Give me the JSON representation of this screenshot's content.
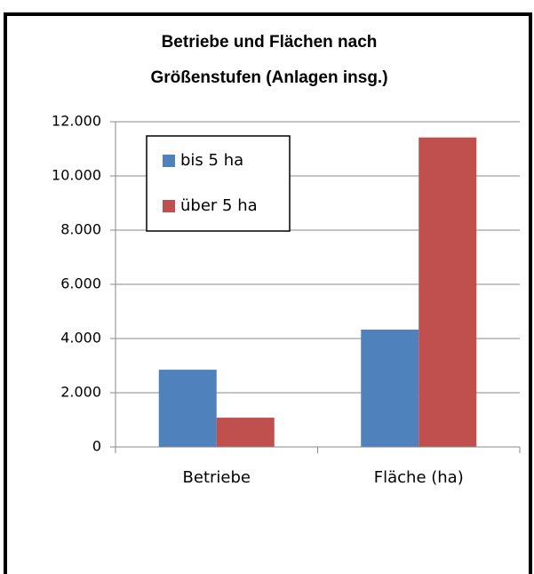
{
  "chart_data": {
    "type": "bar",
    "title": [
      "Betriebe und Flächen nach",
      "Größenstufen (Anlagen insg.)"
    ],
    "categories": [
      "Betriebe",
      "Fläche (ha)"
    ],
    "series": [
      {
        "name": "bis 5 ha",
        "color": "#4f81bd",
        "values": [
          2850,
          4330
        ]
      },
      {
        "name": "über 5 ha",
        "color": "#c0504d",
        "values": [
          1080,
          11420
        ]
      }
    ],
    "ylim": [
      0,
      12000
    ],
    "yticks": [
      0,
      {
        "value": 2000,
        "label": "2.000"
      },
      {
        "value": 4000,
        "label": "4.000"
      },
      {
        "value": 6000,
        "label": "6.000"
      },
      {
        "value": 8000,
        "label": "8.000"
      },
      {
        "value": 10000,
        "label": "10.000"
      },
      {
        "value": 12000,
        "label": "12.000"
      }
    ],
    "grid": true,
    "legend": "top-left"
  }
}
